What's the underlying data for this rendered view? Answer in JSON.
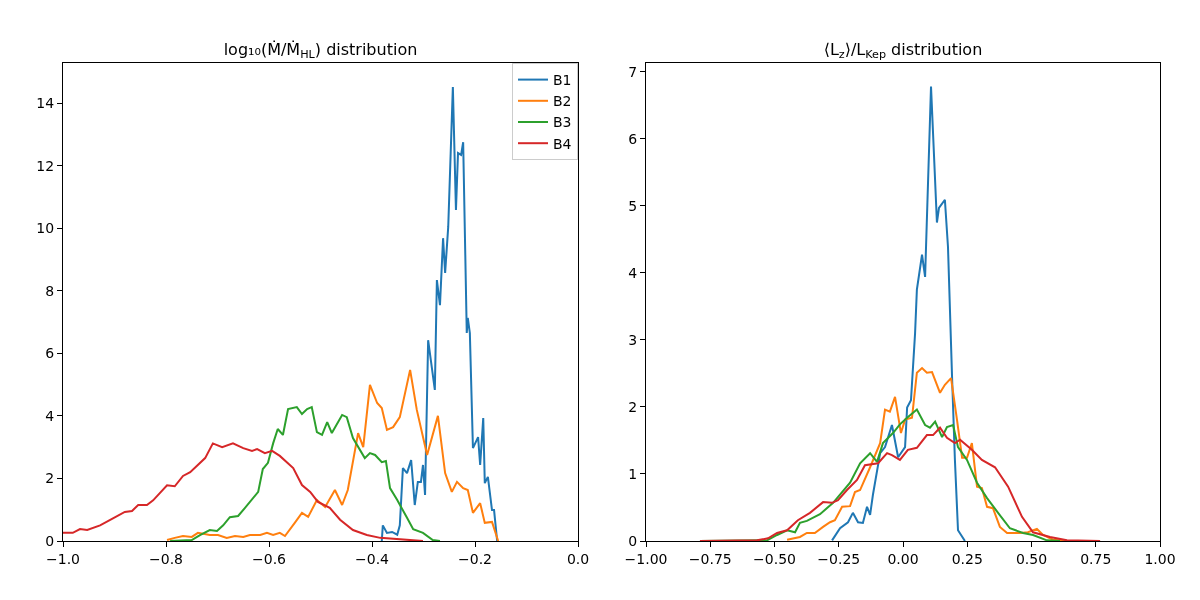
{
  "chart_data": [
    {
      "type": "line",
      "title": "log₁₀(Ṁ/Ṁ$_{HL}$) distribution",
      "legend": "top right",
      "grid": false,
      "xlim": [
        -1,
        0
      ],
      "xticks": [
        {
          "value": -1,
          "label": "−1.0"
        },
        {
          "value": -0.8,
          "label": "−0.8"
        },
        {
          "value": -0.6,
          "label": "−0.6"
        },
        {
          "value": -0.4,
          "label": "−0.4"
        },
        {
          "value": -0.2,
          "label": "−0.2"
        },
        {
          "value": 0,
          "label": "0.0"
        }
      ],
      "ylim": [
        0,
        15.28
      ],
      "yticks": [
        0,
        2,
        4,
        6,
        8,
        10,
        12,
        14
      ],
      "series": [
        {
          "name": "B1",
          "color": "#1f77b4",
          "x": [
            -0.381,
            -0.379,
            -0.371,
            -0.361,
            -0.351,
            -0.346,
            -0.34,
            -0.332,
            -0.324,
            -0.317,
            -0.311,
            -0.305,
            -0.301,
            -0.297,
            -0.291,
            -0.278,
            -0.274,
            -0.268,
            -0.262,
            -0.258,
            -0.252,
            -0.243,
            -0.237,
            -0.233,
            -0.227,
            -0.223,
            -0.216,
            -0.214,
            -0.21,
            -0.204,
            -0.194,
            -0.19,
            -0.184,
            -0.181,
            -0.175,
            -0.167,
            -0.163,
            -0.157
          ],
          "values": [
            0,
            0.5,
            0.26,
            0.29,
            0.2,
            0.5,
            2.33,
            2.17,
            2.59,
            1.15,
            1.89,
            1.89,
            2.43,
            1.47,
            6.42,
            4.83,
            8.34,
            7.54,
            9.68,
            8.57,
            10.04,
            14.51,
            10.58,
            12.4,
            12.34,
            12.75,
            6.65,
            7.13,
            6.65,
            2.97,
            3.32,
            2.43,
            3.93,
            1.85,
            2.05,
            0.99,
            0.99,
            0
          ]
        },
        {
          "name": "B2",
          "color": "#ff7f0e",
          "x": [
            -0.798,
            -0.783,
            -0.767,
            -0.75,
            -0.738,
            -0.715,
            -0.699,
            -0.682,
            -0.666,
            -0.65,
            -0.637,
            -0.617,
            -0.604,
            -0.592,
            -0.579,
            -0.569,
            -0.55,
            -0.536,
            -0.524,
            -0.507,
            -0.491,
            -0.472,
            -0.458,
            -0.447,
            -0.427,
            -0.417,
            -0.404,
            -0.39,
            -0.381,
            -0.371,
            -0.359,
            -0.346,
            -0.326,
            -0.313,
            -0.293,
            -0.272,
            -0.258,
            -0.245,
            -0.235,
            -0.223,
            -0.214,
            -0.204,
            -0.19,
            -0.181,
            -0.167,
            -0.155
          ],
          "values": [
            0.03,
            0.1,
            0.16,
            0.13,
            0.26,
            0.19,
            0.19,
            0.1,
            0.16,
            0.13,
            0.19,
            0.19,
            0.26,
            0.19,
            0.26,
            0.16,
            0.58,
            0.9,
            0.77,
            1.31,
            1.09,
            1.63,
            1.15,
            1.63,
            3.45,
            3.0,
            4.99,
            4.41,
            4.25,
            3.55,
            3.64,
            3.96,
            5.47,
            4.19,
            2.75,
            4.0,
            2.17,
            1.57,
            1.89,
            1.69,
            1.63,
            0.9,
            1.21,
            0.58,
            0.61,
            0
          ]
        },
        {
          "name": "B3",
          "color": "#2ca02c",
          "x": [
            -0.792,
            -0.75,
            -0.734,
            -0.715,
            -0.701,
            -0.689,
            -0.676,
            -0.66,
            -0.647,
            -0.621,
            -0.612,
            -0.602,
            -0.592,
            -0.583,
            -0.573,
            -0.563,
            -0.546,
            -0.536,
            -0.526,
            -0.517,
            -0.507,
            -0.497,
            -0.487,
            -0.478,
            -0.458,
            -0.449,
            -0.437,
            -0.414,
            -0.404,
            -0.394,
            -0.381,
            -0.373,
            -0.365,
            -0.351,
            -0.332,
            -0.32,
            -0.301,
            -0.282,
            -0.268
          ],
          "values": [
            0,
            0.03,
            0.19,
            0.35,
            0.32,
            0.5,
            0.76,
            0.8,
            1.05,
            1.57,
            2.3,
            2.5,
            3.12,
            3.58,
            3.39,
            4.22,
            4.28,
            4.06,
            4.22,
            4.28,
            3.48,
            3.39,
            3.8,
            3.45,
            4.03,
            3.96,
            3.29,
            2.65,
            2.81,
            2.75,
            2.52,
            2.56,
            1.69,
            1.31,
            0.74,
            0.38,
            0.26,
            0.03,
            0
          ]
        },
        {
          "name": "B4",
          "color": "#d62728",
          "x": [
            -1,
            -0.981,
            -0.967,
            -0.953,
            -0.928,
            -0.903,
            -0.88,
            -0.866,
            -0.854,
            -0.837,
            -0.825,
            -0.798,
            -0.783,
            -0.767,
            -0.753,
            -0.724,
            -0.709,
            -0.691,
            -0.67,
            -0.65,
            -0.633,
            -0.623,
            -0.608,
            -0.594,
            -0.579,
            -0.553,
            -0.536,
            -0.52,
            -0.505,
            -0.482,
            -0.462,
            -0.437,
            -0.41,
            -0.384,
            -0.326,
            -0.301
          ],
          "values": [
            0.26,
            0.26,
            0.38,
            0.35,
            0.5,
            0.72,
            0.93,
            0.96,
            1.15,
            1.15,
            1.3,
            1.78,
            1.75,
            2.08,
            2.2,
            2.65,
            3.12,
            3.0,
            3.12,
            2.97,
            2.88,
            2.94,
            2.81,
            2.88,
            2.72,
            2.33,
            1.79,
            1.57,
            1.25,
            1.06,
            0.68,
            0.35,
            0.19,
            0.1,
            0.03,
            0
          ]
        }
      ]
    },
    {
      "type": "line",
      "title": "⟨L$_{z}$⟩/L$_{Kep}$ distribution",
      "grid": false,
      "xlim": [
        -1,
        1
      ],
      "xticks": [
        {
          "value": -1,
          "label": "−1.00"
        },
        {
          "value": -0.75,
          "label": "−0.75"
        },
        {
          "value": -0.5,
          "label": "−0.50"
        },
        {
          "value": -0.25,
          "label": "−0.25"
        },
        {
          "value": 0,
          "label": "0.00"
        },
        {
          "value": 0.25,
          "label": "0.25"
        },
        {
          "value": 0.5,
          "label": "0.50"
        },
        {
          "value": 0.75,
          "label": "0.75"
        },
        {
          "value": 1,
          "label": "1.00"
        }
      ],
      "ylim": [
        0,
        7.13
      ],
      "yticks": [
        0,
        1,
        2,
        3,
        4,
        5,
        6,
        7
      ],
      "series": [
        {
          "color": "#1f77b4",
          "x": [
            -0.276,
            -0.245,
            -0.214,
            -0.195,
            -0.175,
            -0.156,
            -0.14,
            -0.128,
            -0.117,
            -0.089,
            -0.07,
            -0.043,
            -0.019,
            0.008,
            0.016,
            0.031,
            0.047,
            0.054,
            0.074,
            0.086,
            0.109,
            0.132,
            0.14,
            0.163,
            0.175,
            0.191,
            0.202,
            0.214,
            0.241
          ],
          "values": [
            0.01,
            0.19,
            0.28,
            0.42,
            0.28,
            0.27,
            0.51,
            0.39,
            0.69,
            1.31,
            1.4,
            1.73,
            1.25,
            1.4,
            1.99,
            2.1,
            3.1,
            3.75,
            4.27,
            3.94,
            6.78,
            4.75,
            4.97,
            5.09,
            4.39,
            2.43,
            1.21,
            0.16,
            0
          ]
        },
        {
          "color": "#ff7f0e",
          "x": [
            -0.451,
            -0.401,
            -0.374,
            -0.343,
            -0.311,
            -0.284,
            -0.265,
            -0.237,
            -0.206,
            -0.187,
            -0.167,
            -0.128,
            -0.089,
            -0.07,
            -0.051,
            -0.031,
            -0.008,
            0.008,
            0.035,
            0.054,
            0.074,
            0.093,
            0.113,
            0.144,
            0.163,
            0.187,
            0.21,
            0.23,
            0.249,
            0.268,
            0.288,
            0.307,
            0.327,
            0.35,
            0.377,
            0.405,
            0.455,
            0.486,
            0.521,
            0.545,
            0.584,
            0.638
          ],
          "values": [
            0.02,
            0.06,
            0.12,
            0.12,
            0.21,
            0.28,
            0.31,
            0.51,
            0.52,
            0.73,
            0.76,
            1.1,
            1.46,
            1.96,
            1.93,
            2.15,
            1.61,
            1.81,
            1.84,
            2.51,
            2.58,
            2.51,
            2.52,
            2.21,
            2.33,
            2.43,
            1.81,
            1.24,
            1.24,
            1.46,
            0.81,
            0.79,
            0.51,
            0.49,
            0.21,
            0.12,
            0.12,
            0.13,
            0.18,
            0.09,
            0.02,
            0
          ]
        },
        {
          "color": "#2ca02c",
          "x": [
            -0.79,
            -0.529,
            -0.49,
            -0.451,
            -0.42,
            -0.401,
            -0.374,
            -0.323,
            -0.272,
            -0.237,
            -0.206,
            -0.167,
            -0.128,
            -0.101,
            -0.078,
            -0.039,
            -0.012,
            0.016,
            0.054,
            0.086,
            0.105,
            0.125,
            0.152,
            0.171,
            0.195,
            0.214,
            0.249,
            0.288,
            0.327,
            0.37,
            0.416,
            0.467,
            0.506,
            0.56,
            0.611
          ],
          "values": [
            0,
            0.01,
            0.09,
            0.16,
            0.13,
            0.27,
            0.3,
            0.4,
            0.57,
            0.73,
            0.87,
            1.16,
            1.31,
            1.18,
            1.46,
            1.61,
            1.74,
            1.84,
            1.96,
            1.73,
            1.69,
            1.78,
            1.55,
            1.7,
            1.73,
            1.4,
            1.21,
            0.87,
            0.64,
            0.42,
            0.19,
            0.12,
            0.09,
            0.01,
            0
          ]
        },
        {
          "color": "#d62728",
          "x": [
            -0.79,
            -0.568,
            -0.525,
            -0.49,
            -0.451,
            -0.409,
            -0.362,
            -0.311,
            -0.276,
            -0.253,
            -0.218,
            -0.179,
            -0.148,
            -0.097,
            -0.062,
            -0.043,
            -0.012,
            0.019,
            0.054,
            0.093,
            0.117,
            0.144,
            0.171,
            0.202,
            0.222,
            0.268,
            0.307,
            0.358,
            0.409,
            0.463,
            0.506,
            0.572,
            0.638,
            0.767
          ],
          "values": [
            0,
            0.01,
            0.04,
            0.12,
            0.16,
            0.31,
            0.42,
            0.58,
            0.57,
            0.61,
            0.76,
            0.91,
            1.13,
            1.16,
            1.31,
            1.28,
            1.21,
            1.36,
            1.39,
            1.58,
            1.58,
            1.69,
            1.54,
            1.46,
            1.51,
            1.36,
            1.21,
            1.1,
            0.81,
            0.36,
            0.13,
            0.06,
            0.01,
            0
          ]
        }
      ]
    }
  ]
}
